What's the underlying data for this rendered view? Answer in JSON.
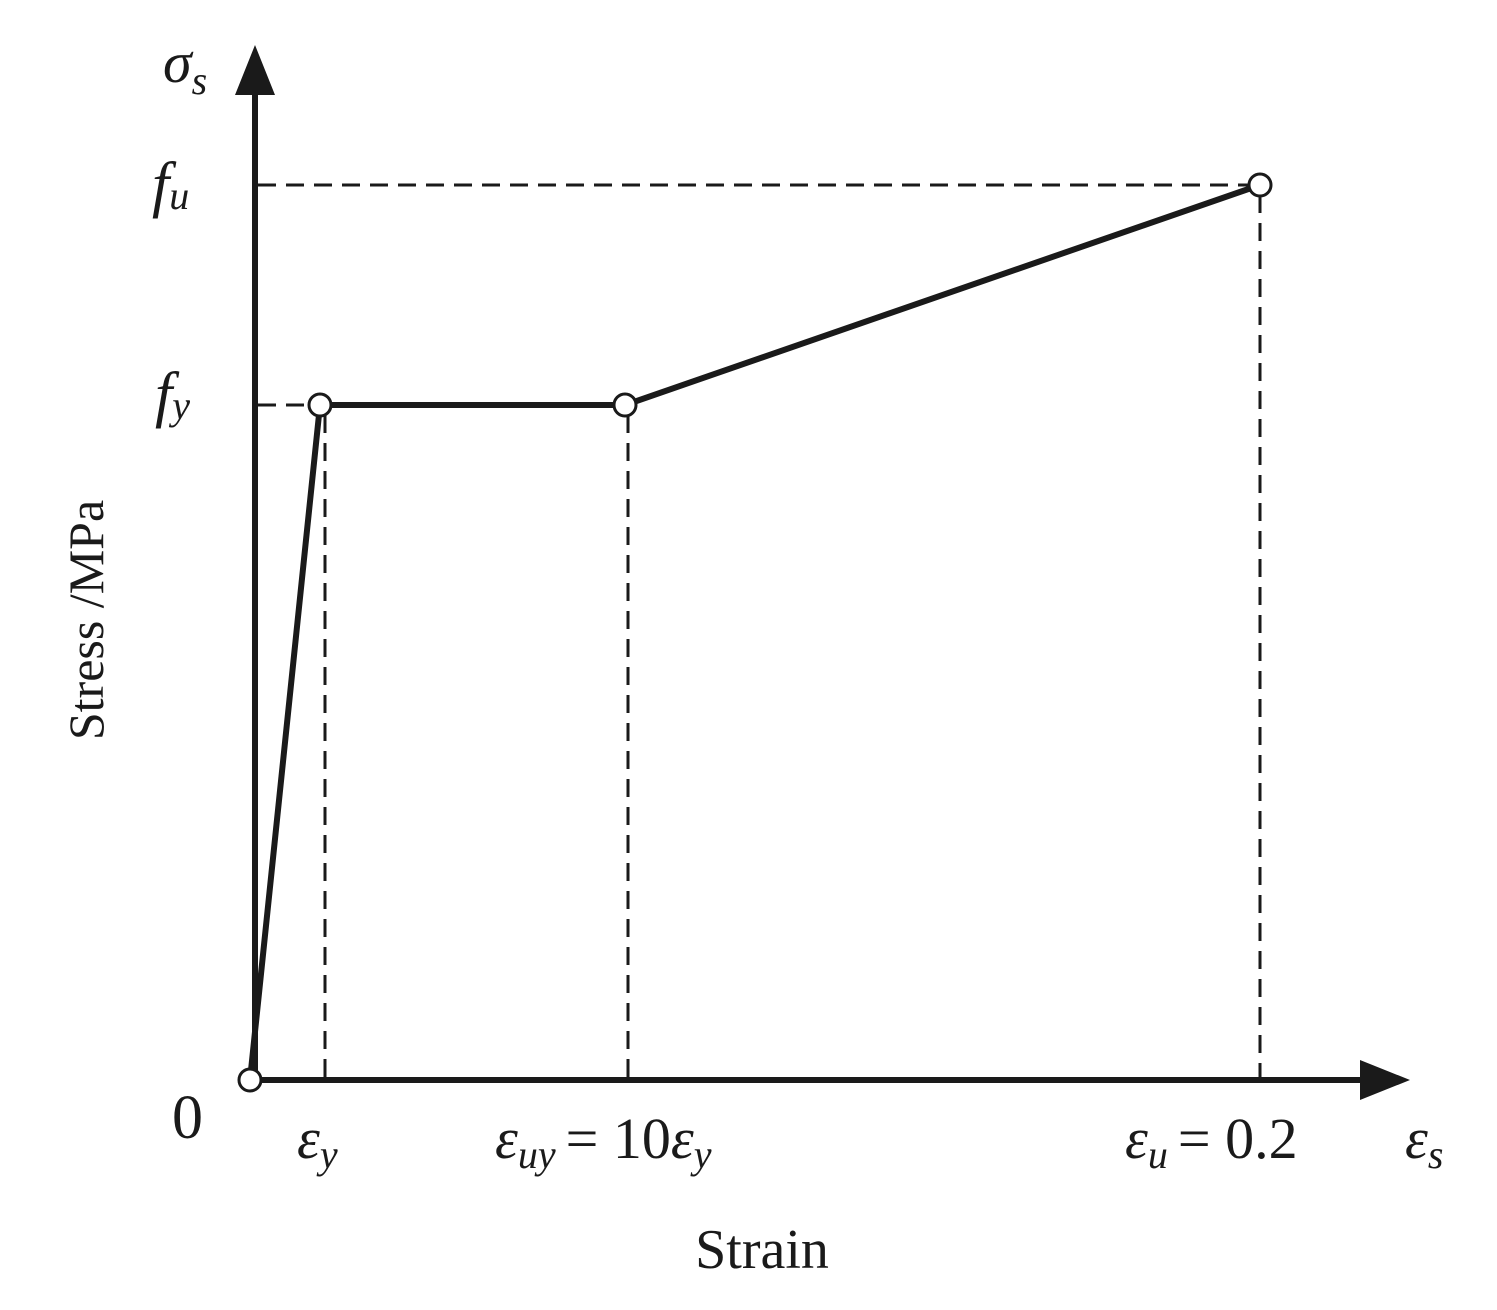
{
  "y_axis": {
    "symbol": "σ",
    "symbol_sub": "s",
    "label": "Stress /MPa"
  },
  "x_axis": {
    "symbol": "ε",
    "symbol_sub": "s",
    "label": "Strain",
    "origin": "0"
  },
  "y_ticks": [
    {
      "symbol": "f",
      "sub": "u"
    },
    {
      "symbol": "f",
      "sub": "y"
    }
  ],
  "x_ticks": [
    {
      "symbol": "ε",
      "sub": "y"
    },
    {
      "symbol": "ε",
      "sub": "uy",
      "relation": "= 10",
      "symbol2": "ε",
      "sub2": "y"
    },
    {
      "symbol": "ε",
      "sub": "u",
      "relation": "= 0.2"
    }
  ]
}
